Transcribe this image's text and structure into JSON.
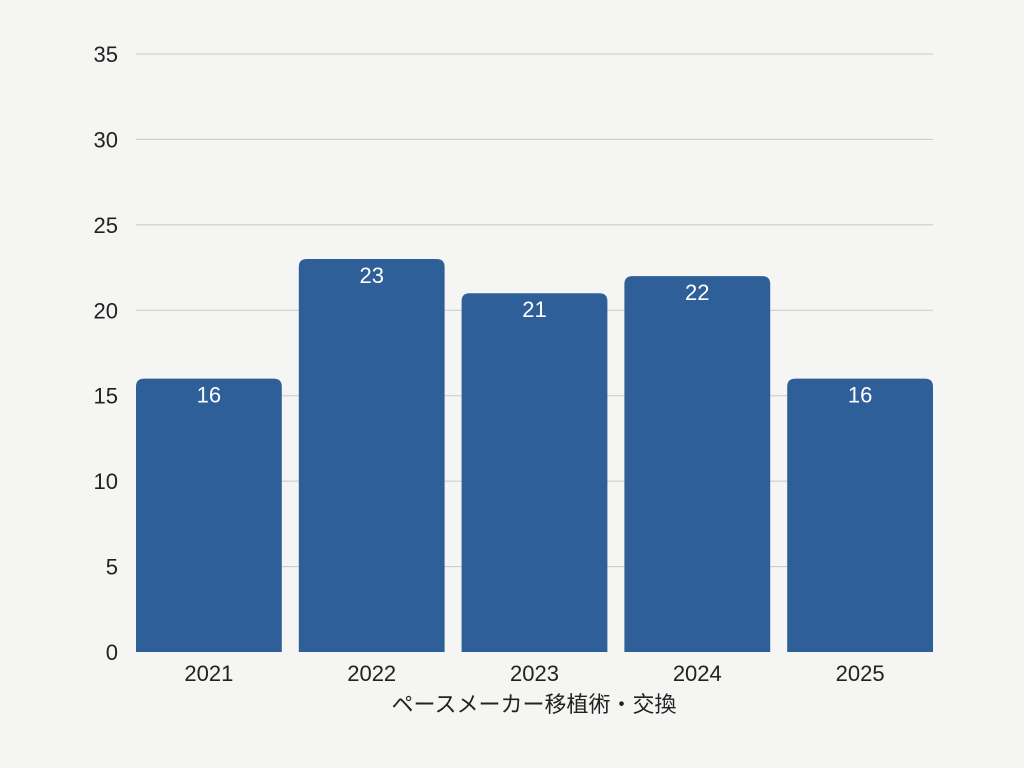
{
  "chart_data": {
    "type": "bar",
    "categories": [
      "2021",
      "2022",
      "2023",
      "2024",
      "2025"
    ],
    "values": [
      16,
      23,
      21,
      22,
      16
    ],
    "xlabel": "ペースメーカー移植術・交換",
    "ylabel": "",
    "ylim": [
      0,
      35
    ],
    "yticks": [
      0,
      5,
      10,
      15,
      20,
      25,
      30,
      35
    ],
    "grid": true,
    "data_labels": true,
    "bar_color": "#2e5f98",
    "gridline_color": "#c8c8c8",
    "background_color": "#f5f5f3"
  }
}
